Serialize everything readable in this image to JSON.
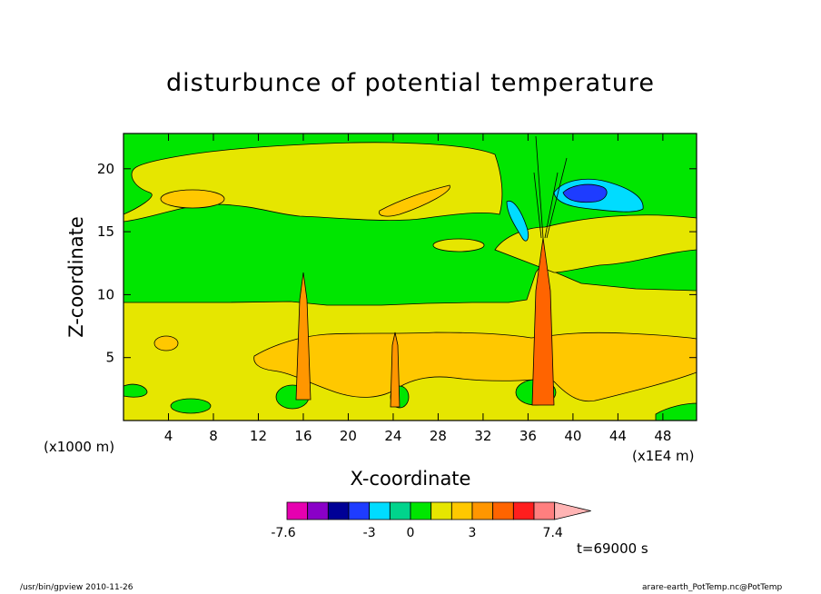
{
  "chart_data": {
    "type": "heatmap",
    "title": "disturbunce of potential temperature",
    "xlabel": "X-coordinate",
    "ylabel": "Z-coordinate",
    "x_unit_left": "(x1000 m)",
    "x_unit_right": "(x1E4 m)",
    "xlim": [
      0,
      51
    ],
    "ylim": [
      0,
      22.8
    ],
    "xticks": [
      4,
      8,
      12,
      16,
      20,
      24,
      28,
      32,
      36,
      40,
      44,
      48
    ],
    "yticks": [
      5,
      10,
      15,
      20
    ],
    "colorbar": {
      "levels": [
        -7.6,
        -3,
        0,
        3,
        7.4
      ],
      "tick_labels": [
        "-7.6",
        "-3",
        "0",
        "3",
        "7.4"
      ],
      "colors": [
        "#e600b0",
        "#8a00c8",
        "#000096",
        "#1e3cff",
        "#00dcff",
        "#00d48c",
        "#00e600",
        "#e6e600",
        "#ffc800",
        "#ff9600",
        "#ff6400",
        "#ff1e1e",
        "#ff7f7f",
        "#ffb4b4"
      ]
    },
    "regions": [
      {
        "name": "background",
        "value_sign": "near-zero positive",
        "color": "#00e600"
      },
      {
        "name": "lower-warm-layer",
        "z_range": [
          0,
          9.5
        ],
        "color": "#e6e600"
      },
      {
        "name": "lower-warm-core",
        "z_range": [
          3.5,
          7.5
        ],
        "color": "#ffc800"
      },
      {
        "name": "upper-cold-anomaly",
        "x_center": 41,
        "z_center": 17.5,
        "color": "#1e3cff"
      }
    ],
    "time": "t=69000 s"
  },
  "footer": {
    "left": "/usr/bin/gpview   2010-11-26",
    "right": "arare-earth_PotTemp.nc@PotTemp"
  }
}
